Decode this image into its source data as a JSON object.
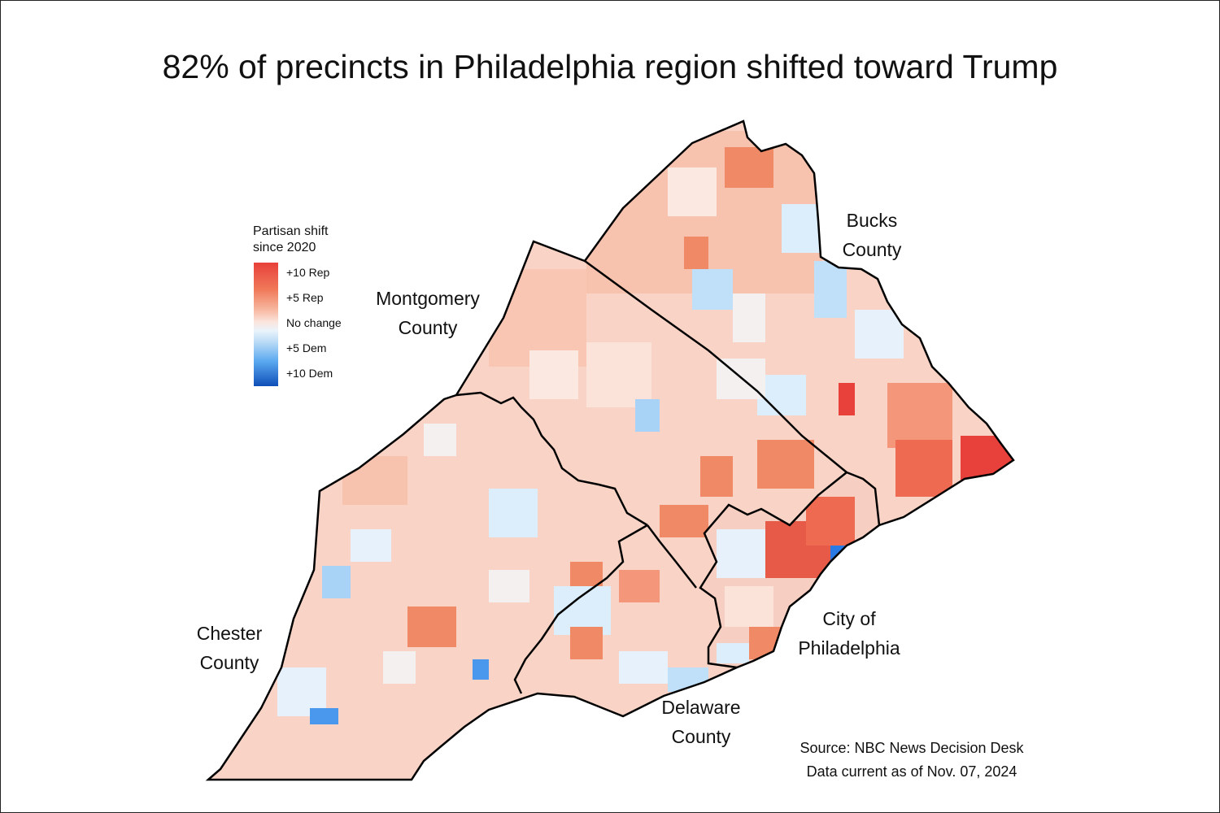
{
  "title": "82% of precincts in Philadelphia region shifted toward Trump",
  "legend": {
    "title_line1": "Partisan shift",
    "title_line2": "since 2020",
    "ticks": [
      "+10 Rep",
      "+5 Rep",
      "No change",
      "+5 Dem",
      "+10 Dem"
    ],
    "colors": {
      "rep_max": "#e8403a",
      "rep_mid": "#f07a5a",
      "neutral": "#f7f3f0",
      "dem_mid": "#5aa8f0",
      "dem_max": "#0e4fb8"
    }
  },
  "counties": [
    {
      "line1": "Bucks",
      "line2": "County"
    },
    {
      "line1": "Montgomery",
      "line2": "County"
    },
    {
      "line1": "Chester",
      "line2": "County"
    },
    {
      "line1": "Delaware",
      "line2": "County"
    },
    {
      "line1": "City of",
      "line2": "Philadelphia"
    }
  ],
  "source": {
    "line1": "Source: NBC News Decision Desk",
    "line2": "Data current as of Nov. 07, 2024"
  }
}
